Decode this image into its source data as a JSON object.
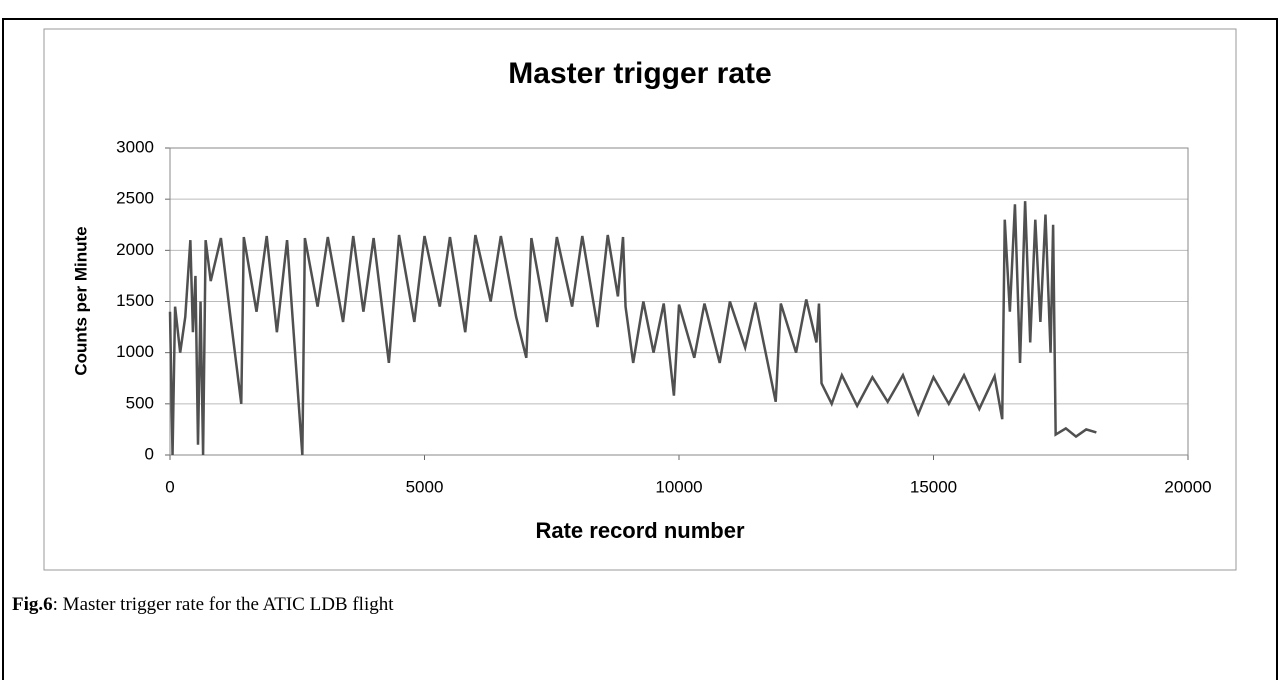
{
  "chart_data": {
    "type": "line",
    "title": "Master trigger rate",
    "x_label": "Rate record number",
    "y_label": "Counts per Minute",
    "x": [
      0,
      50,
      100,
      200,
      300,
      400,
      450,
      500,
      550,
      600,
      650,
      700,
      800,
      1000,
      1200,
      1400,
      1450,
      1700,
      1900,
      2100,
      2300,
      2600,
      2650,
      2900,
      3100,
      3400,
      3600,
      3800,
      4000,
      4300,
      4500,
      4800,
      5000,
      5300,
      5500,
      5800,
      6000,
      6300,
      6500,
      6800,
      7000,
      7100,
      7400,
      7600,
      7900,
      8100,
      8400,
      8600,
      8800,
      8900,
      8950,
      9100,
      9300,
      9500,
      9700,
      9900,
      10000,
      10300,
      10500,
      10800,
      11000,
      11300,
      11500,
      11900,
      12000,
      12300,
      12500,
      12700,
      12750,
      12800,
      13000,
      13200,
      13500,
      13800,
      14100,
      14400,
      14700,
      15000,
      15300,
      15600,
      15900,
      16200,
      16350,
      16400,
      16500,
      16600,
      16700,
      16800,
      16900,
      17000,
      17100,
      17200,
      17300,
      17350,
      17400,
      17600,
      17800,
      18000,
      18200
    ],
    "values": [
      1400,
      0,
      1450,
      1000,
      1350,
      2100,
      1200,
      1750,
      100,
      1500,
      0,
      2100,
      1700,
      2120,
      1300,
      500,
      2130,
      1400,
      2140,
      1200,
      2100,
      0,
      2120,
      1450,
      2130,
      1300,
      2140,
      1400,
      2120,
      900,
      2150,
      1300,
      2140,
      1450,
      2130,
      1200,
      2150,
      1500,
      2140,
      1350,
      950,
      2120,
      1300,
      2130,
      1450,
      2140,
      1250,
      2150,
      1550,
      2130,
      1450,
      900,
      1500,
      1000,
      1480,
      580,
      1470,
      950,
      1480,
      900,
      1500,
      1050,
      1490,
      520,
      1480,
      1000,
      1520,
      1100,
      1480,
      700,
      500,
      780,
      480,
      760,
      520,
      780,
      400,
      760,
      500,
      780,
      450,
      770,
      350,
      2300,
      1400,
      2450,
      900,
      2480,
      1100,
      2300,
      1300,
      2350,
      1000,
      2250,
      200,
      260,
      180,
      250,
      220
    ],
    "color": "#505050",
    "xlim": [
      0,
      20000
    ],
    "xticks": [
      0,
      5000,
      10000,
      15000,
      20000
    ],
    "ylim": [
      0,
      3000
    ],
    "yticks": [
      0,
      500,
      1000,
      1500,
      2000,
      2500,
      3000
    ],
    "grid": true
  },
  "caption": {
    "label": "Fig.6",
    "text": ": Master trigger rate for the ATIC LDB flight"
  }
}
